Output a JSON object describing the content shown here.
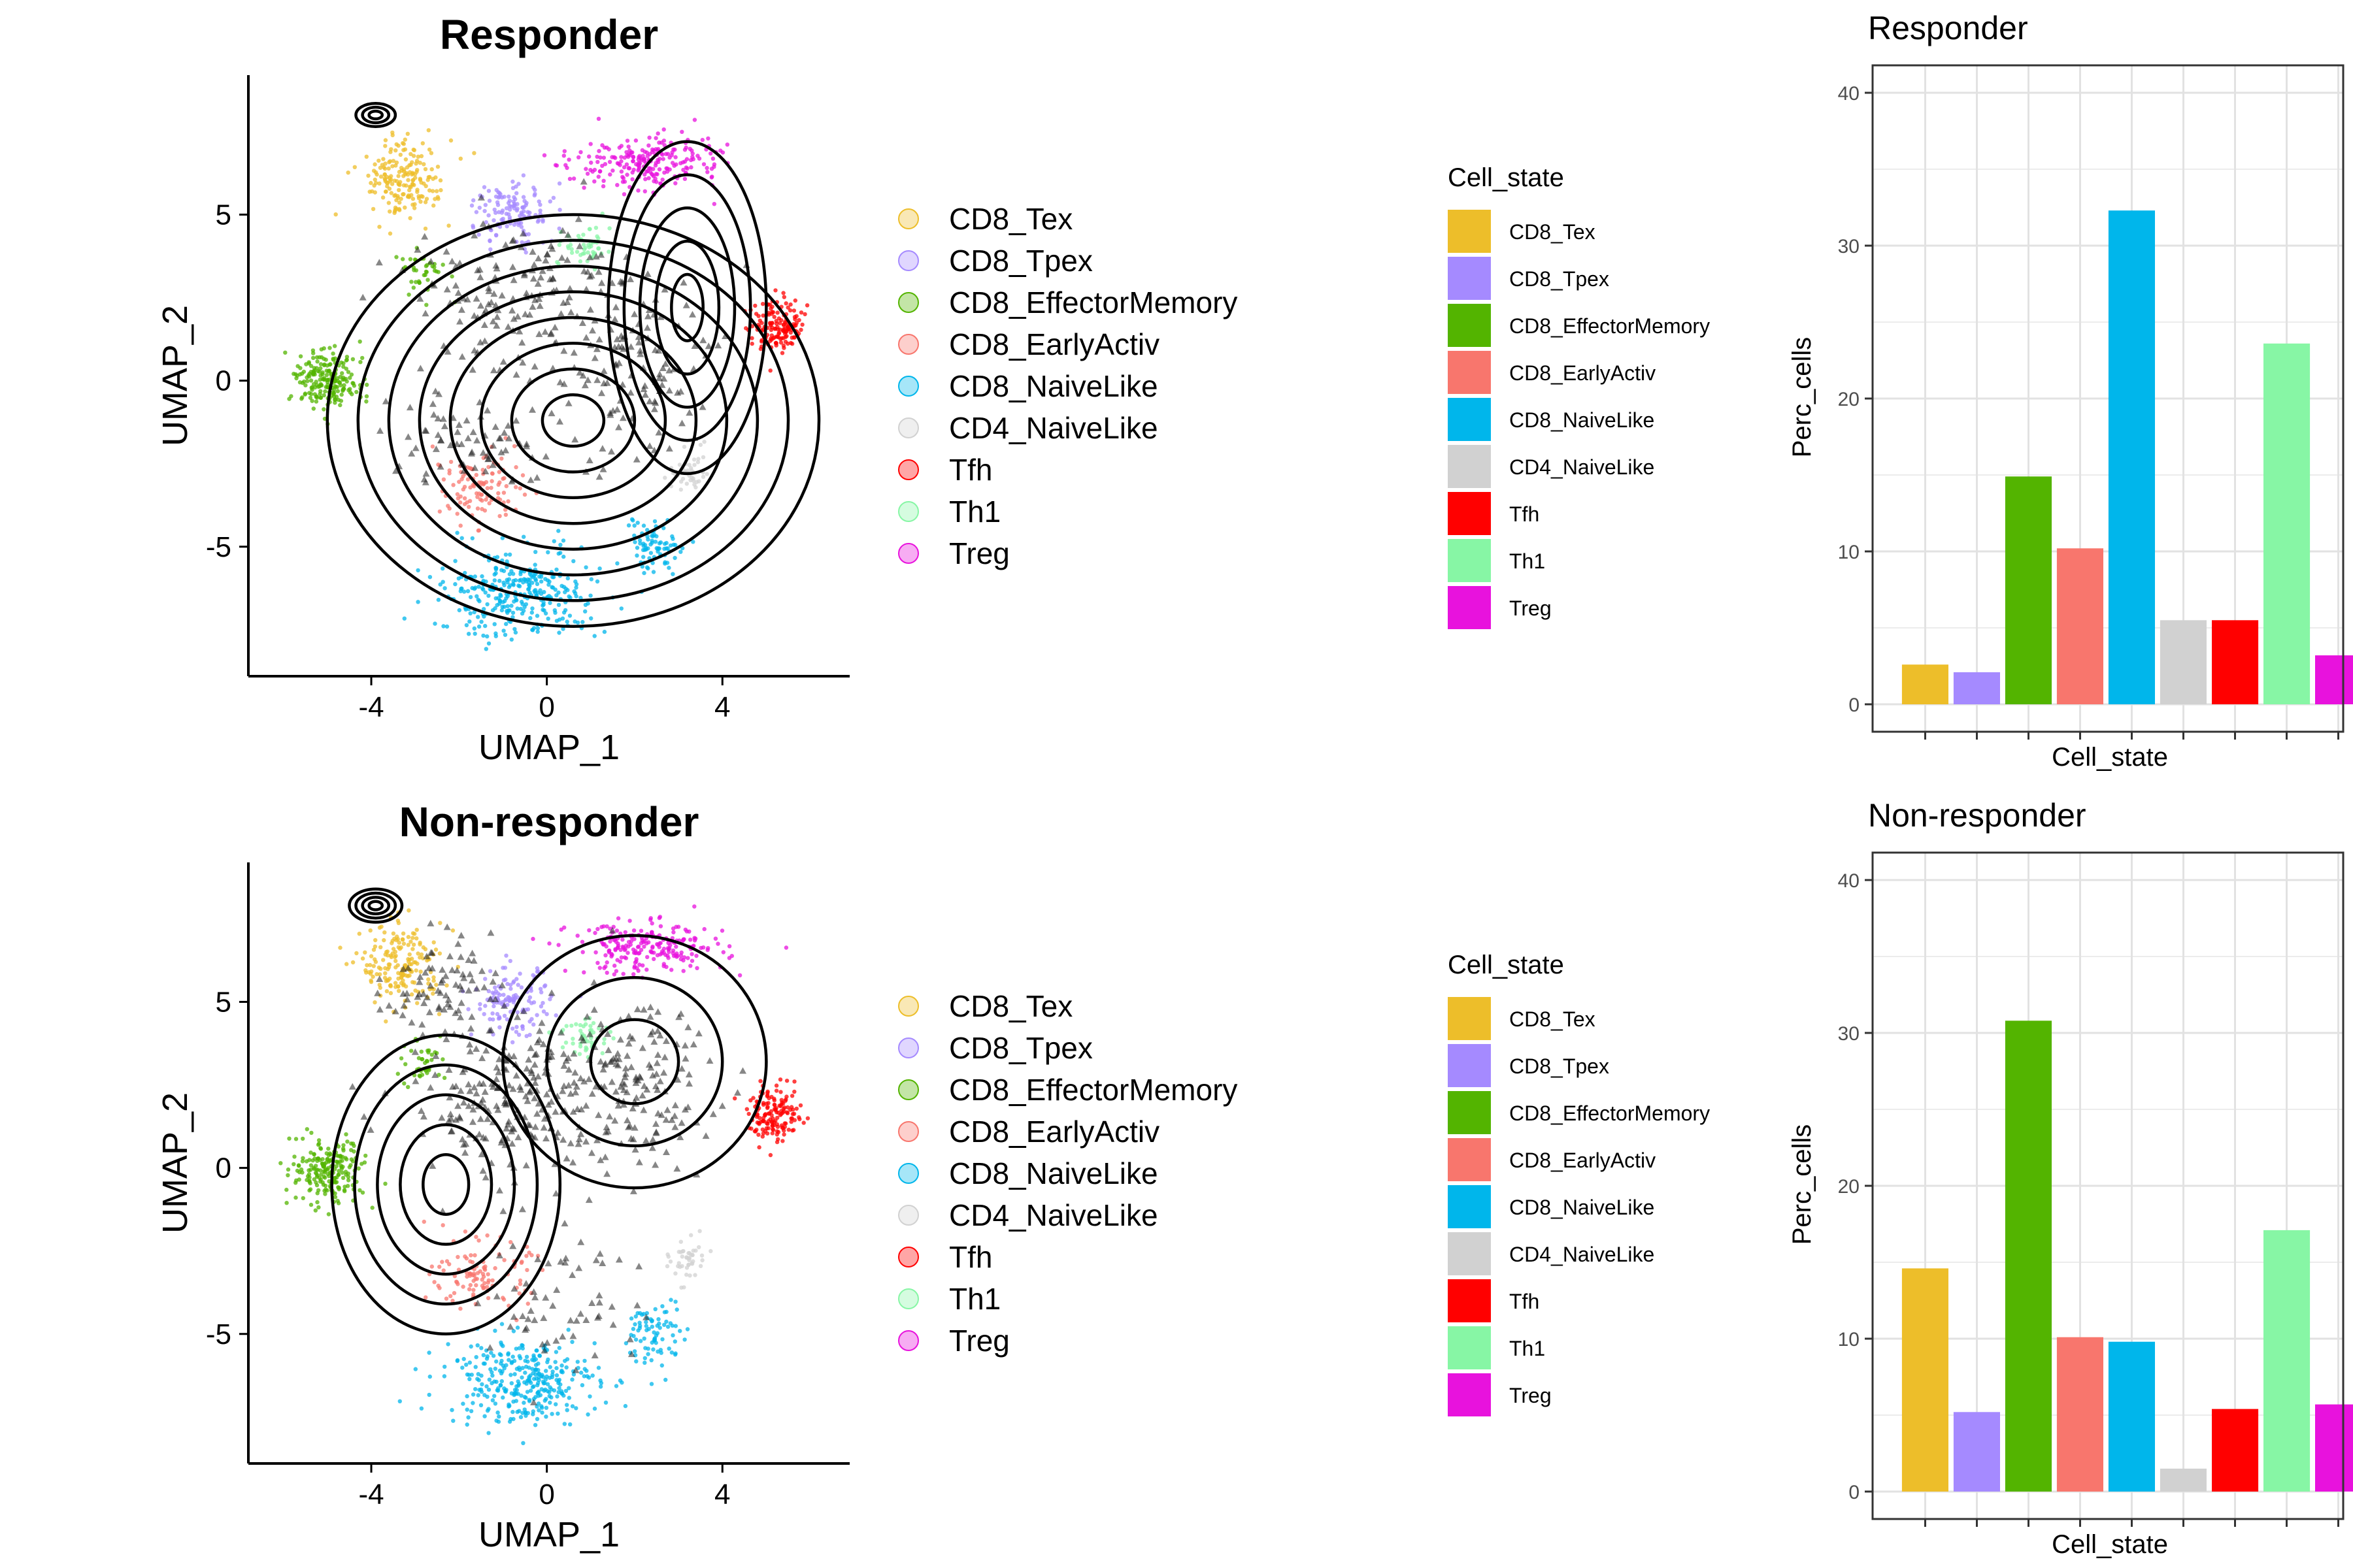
{
  "state_colors": {
    "CD8_Tex": "#EDBE2A",
    "CD8_Tpex": "#A58AFF",
    "CD8_EffectorMemory": "#53B400",
    "CD8_EarlyActiv": "#F8766D",
    "CD8_NaiveLike": "#00B6EB",
    "CD4_NaiveLike": "#d1d1d1",
    "Tfh": "#FF0000",
    "Th1": "#87f6a5",
    "Treg": "#e812dd"
  },
  "chart_data": [
    {
      "type": "scatter",
      "title": "Responder",
      "xlabel": "UMAP_1",
      "ylabel": "UMAP_2",
      "xlim": [
        -6.8,
        6.9
      ],
      "ylim": [
        -8.9,
        9.2
      ],
      "x_ticks": [
        "-4",
        "0",
        "4"
      ],
      "y_ticks": [
        "5",
        "0",
        "-5"
      ],
      "legend": [
        "CD8_Tex",
        "CD8_Tpex",
        "CD8_EffectorMemory",
        "CD8_EarlyActiv",
        "CD8_NaiveLike",
        "CD4_NaiveLike",
        "Tfh",
        "Th1",
        "Treg"
      ],
      "legend_position": "right",
      "overlay": "density-contours"
    },
    {
      "type": "bar",
      "title": "Responder",
      "xlabel": "Cell_state",
      "ylabel": "Perc_cells",
      "ylim": [
        0,
        40
      ],
      "y_ticks": [
        "0",
        "10",
        "20",
        "30",
        "40"
      ],
      "grid": true,
      "legend_title": "Cell_state",
      "legend_position": "right",
      "categories": [
        "CD8_Tex",
        "CD8_Tpex",
        "CD8_EffectorMemory",
        "CD8_EarlyActiv",
        "CD8_NaiveLike",
        "CD4_NaiveLike",
        "Tfh",
        "Th1",
        "Treg"
      ],
      "values": [
        2.6,
        2.1,
        14.9,
        10.2,
        32.3,
        5.5,
        5.5,
        23.6,
        3.2
      ]
    },
    {
      "type": "scatter",
      "title": "Non-responder",
      "xlabel": "UMAP_1",
      "ylabel": "UMAP_2",
      "xlim": [
        -6.8,
        6.9
      ],
      "ylim": [
        -8.9,
        9.2
      ],
      "x_ticks": [
        "-4",
        "0",
        "4"
      ],
      "y_ticks": [
        "5",
        "0",
        "-5"
      ],
      "legend": [
        "CD8_Tex",
        "CD8_Tpex",
        "CD8_EffectorMemory",
        "CD8_EarlyActiv",
        "CD8_NaiveLike",
        "CD4_NaiveLike",
        "Tfh",
        "Th1",
        "Treg"
      ],
      "legend_position": "right",
      "overlay": "density-contours"
    },
    {
      "type": "bar",
      "title": "Non-responder",
      "xlabel": "Cell_state",
      "ylabel": "Perc_cells",
      "ylim": [
        0,
        40
      ],
      "y_ticks": [
        "0",
        "10",
        "20",
        "30",
        "40"
      ],
      "grid": true,
      "legend_title": "Cell_state",
      "legend_position": "right",
      "categories": [
        "CD8_Tex",
        "CD8_Tpex",
        "CD8_EffectorMemory",
        "CD8_EarlyActiv",
        "CD8_NaiveLike",
        "CD4_NaiveLike",
        "Tfh",
        "Th1",
        "Treg"
      ],
      "values": [
        14.6,
        5.2,
        30.8,
        10.1,
        9.8,
        1.5,
        5.4,
        17.1,
        5.7
      ]
    }
  ]
}
